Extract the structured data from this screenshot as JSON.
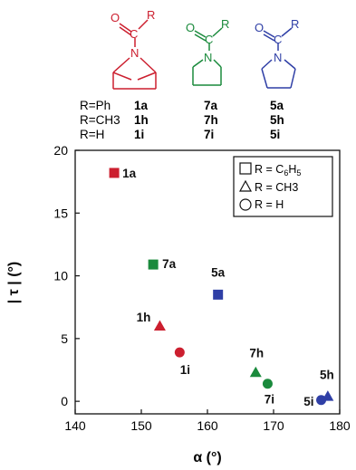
{
  "colors": {
    "red": "#cc1f2f",
    "green": "#1a8a3c",
    "blue": "#2f3fa6",
    "black": "#111111"
  },
  "structures": {
    "atom_O": "O",
    "atom_N": "N",
    "atom_R": "R",
    "atom_C": "C"
  },
  "compound_table": {
    "rows": [
      {
        "r": "R=Ph",
        "c1": "1a",
        "c2": "7a",
        "c3": "5a"
      },
      {
        "r": "R=CH3",
        "c1": "1h",
        "c2": "7h",
        "c3": "5h"
      },
      {
        "r": "R=H",
        "c1": "1i",
        "c2": "7i",
        "c3": "5i"
      }
    ]
  },
  "chart_data": {
    "type": "scatter",
    "xlabel": "α (°)",
    "ylabel": "| τ | (°)",
    "xlim": [
      140,
      180
    ],
    "ylim": [
      -1,
      20
    ],
    "xticks": [
      140,
      150,
      160,
      170,
      180
    ],
    "yticks": [
      0,
      5,
      10,
      15,
      20
    ],
    "grid": false,
    "legend_position": "top-right",
    "legend": [
      {
        "marker": "square",
        "label": "R = C6H5"
      },
      {
        "marker": "triangle",
        "label": "R = CH3"
      },
      {
        "marker": "circle",
        "label": "R = H"
      }
    ],
    "points": [
      {
        "label": "1a",
        "x": 145.9,
        "y": 18.2,
        "marker": "square",
        "color": "red"
      },
      {
        "label": "7a",
        "x": 151.8,
        "y": 10.9,
        "marker": "square",
        "color": "green"
      },
      {
        "label": "5a",
        "x": 161.6,
        "y": 8.5,
        "marker": "square",
        "color": "blue"
      },
      {
        "label": "1h",
        "x": 152.8,
        "y": 6.0,
        "marker": "triangle",
        "color": "red"
      },
      {
        "label": "1i",
        "x": 155.8,
        "y": 3.9,
        "marker": "circle",
        "color": "red"
      },
      {
        "label": "7h",
        "x": 167.3,
        "y": 2.3,
        "marker": "triangle",
        "color": "green"
      },
      {
        "label": "7i",
        "x": 169.1,
        "y": 1.4,
        "marker": "circle",
        "color": "green"
      },
      {
        "label": "5h",
        "x": 178.2,
        "y": 0.4,
        "marker": "triangle",
        "color": "blue"
      },
      {
        "label": "5i",
        "x": 177.2,
        "y": 0.1,
        "marker": "circle",
        "color": "blue"
      }
    ]
  }
}
